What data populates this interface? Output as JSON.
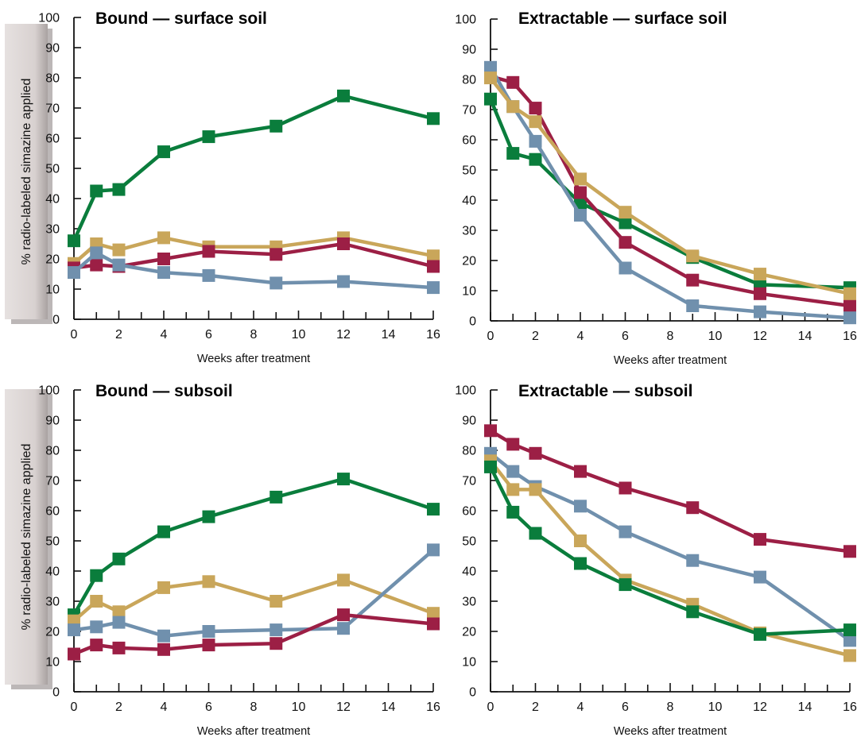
{
  "ylabel": "% radio-labeled simazine applied",
  "colors": {
    "green": "#0a7d3c",
    "tan": "#c9a65a",
    "maroon": "#9c1f45",
    "blue": "#7090ad",
    "label_box": "#d9d3d2"
  },
  "chart_data": [
    {
      "type": "line",
      "title": "Bound — surface soil",
      "xlabel": "Weeks after treatment",
      "ylabel": "% radio-labeled simazine applied",
      "xlim": [
        0,
        16
      ],
      "ylim": [
        0,
        100
      ],
      "xticks": [
        0,
        2,
        4,
        6,
        8,
        10,
        12,
        14,
        16
      ],
      "yticks": [
        0,
        10,
        20,
        30,
        40,
        50,
        60,
        70,
        80,
        90,
        100
      ],
      "x": [
        0,
        1,
        2,
        4,
        6,
        9,
        12,
        16
      ],
      "series": [
        {
          "color": "green",
          "values": [
            26,
            42.5,
            43,
            55.5,
            60.5,
            64,
            74,
            66.5
          ]
        },
        {
          "color": "tan",
          "values": [
            18.5,
            25,
            23,
            27,
            24,
            24,
            27,
            21
          ]
        },
        {
          "color": "maroon",
          "values": [
            17,
            18,
            17.5,
            20,
            22.5,
            21.5,
            25,
            17.5
          ]
        },
        {
          "color": "blue",
          "values": [
            15.5,
            22,
            18,
            15.5,
            14.5,
            12,
            12.5,
            10.5
          ]
        }
      ]
    },
    {
      "type": "line",
      "title": "Extractable — surface soil",
      "xlabel": "Weeks after treatment",
      "ylabel": "",
      "xlim": [
        0,
        16
      ],
      "ylim": [
        0,
        100
      ],
      "xticks": [
        0,
        2,
        4,
        6,
        8,
        10,
        12,
        14,
        16
      ],
      "yticks": [
        0,
        10,
        20,
        30,
        40,
        50,
        60,
        70,
        80,
        90,
        100
      ],
      "x": [
        0,
        1,
        2,
        4,
        6,
        9,
        12,
        16
      ],
      "series": [
        {
          "color": "green",
          "values": [
            73.5,
            55.5,
            53.5,
            39,
            32.5,
            21,
            12,
            11
          ]
        },
        {
          "color": "maroon",
          "values": [
            81,
            79,
            70.5,
            42.5,
            26,
            13.5,
            9,
            5
          ]
        },
        {
          "color": "blue",
          "values": [
            84,
            71,
            59.5,
            35,
            17.5,
            5,
            3,
            1
          ]
        },
        {
          "color": "tan",
          "values": [
            80.5,
            71,
            66,
            47,
            36,
            21.5,
            15.5,
            9
          ]
        }
      ]
    },
    {
      "type": "line",
      "title": "Bound — subsoil",
      "xlabel": "Weeks after treatment",
      "ylabel": "% radio-labeled simazine applied",
      "xlim": [
        0,
        16
      ],
      "ylim": [
        0,
        100
      ],
      "xticks": [
        0,
        2,
        4,
        6,
        8,
        10,
        12,
        14,
        16
      ],
      "yticks": [
        0,
        10,
        20,
        30,
        40,
        50,
        60,
        70,
        80,
        90,
        100
      ],
      "x": [
        0,
        1,
        2,
        4,
        6,
        9,
        12,
        16
      ],
      "series": [
        {
          "color": "green",
          "values": [
            25.5,
            38.5,
            44,
            53,
            58,
            64.5,
            70.5,
            60.5
          ]
        },
        {
          "color": "tan",
          "values": [
            23.5,
            30,
            26.5,
            34.5,
            36.5,
            30,
            37,
            26
          ]
        },
        {
          "color": "blue",
          "values": [
            20.5,
            21.5,
            23,
            18.5,
            20,
            20.5,
            21,
            47
          ]
        },
        {
          "color": "maroon",
          "values": [
            12.5,
            15.5,
            14.5,
            14,
            15.5,
            16,
            25.5,
            22.5
          ]
        }
      ]
    },
    {
      "type": "line",
      "title": "Extractable — subsoil",
      "xlabel": "Weeks after treatment",
      "ylabel": "",
      "xlim": [
        0,
        16
      ],
      "ylim": [
        0,
        100
      ],
      "xticks": [
        0,
        2,
        4,
        6,
        8,
        10,
        12,
        14,
        16
      ],
      "yticks": [
        0,
        10,
        20,
        30,
        40,
        50,
        60,
        70,
        80,
        90,
        100
      ],
      "x": [
        0,
        1,
        2,
        4,
        6,
        9,
        12,
        16
      ],
      "series": [
        {
          "color": "maroon",
          "values": [
            86.5,
            82,
            79,
            73,
            67.5,
            61,
            50.5,
            46.5
          ]
        },
        {
          "color": "blue",
          "values": [
            79,
            73,
            68,
            61.5,
            53,
            43.5,
            38,
            17
          ]
        },
        {
          "color": "tan",
          "values": [
            76.5,
            67,
            67,
            50,
            37,
            29,
            19.5,
            12
          ]
        },
        {
          "color": "green",
          "values": [
            74.5,
            59.5,
            52.5,
            42.5,
            35.5,
            26.5,
            19,
            20.5
          ]
        }
      ]
    }
  ]
}
